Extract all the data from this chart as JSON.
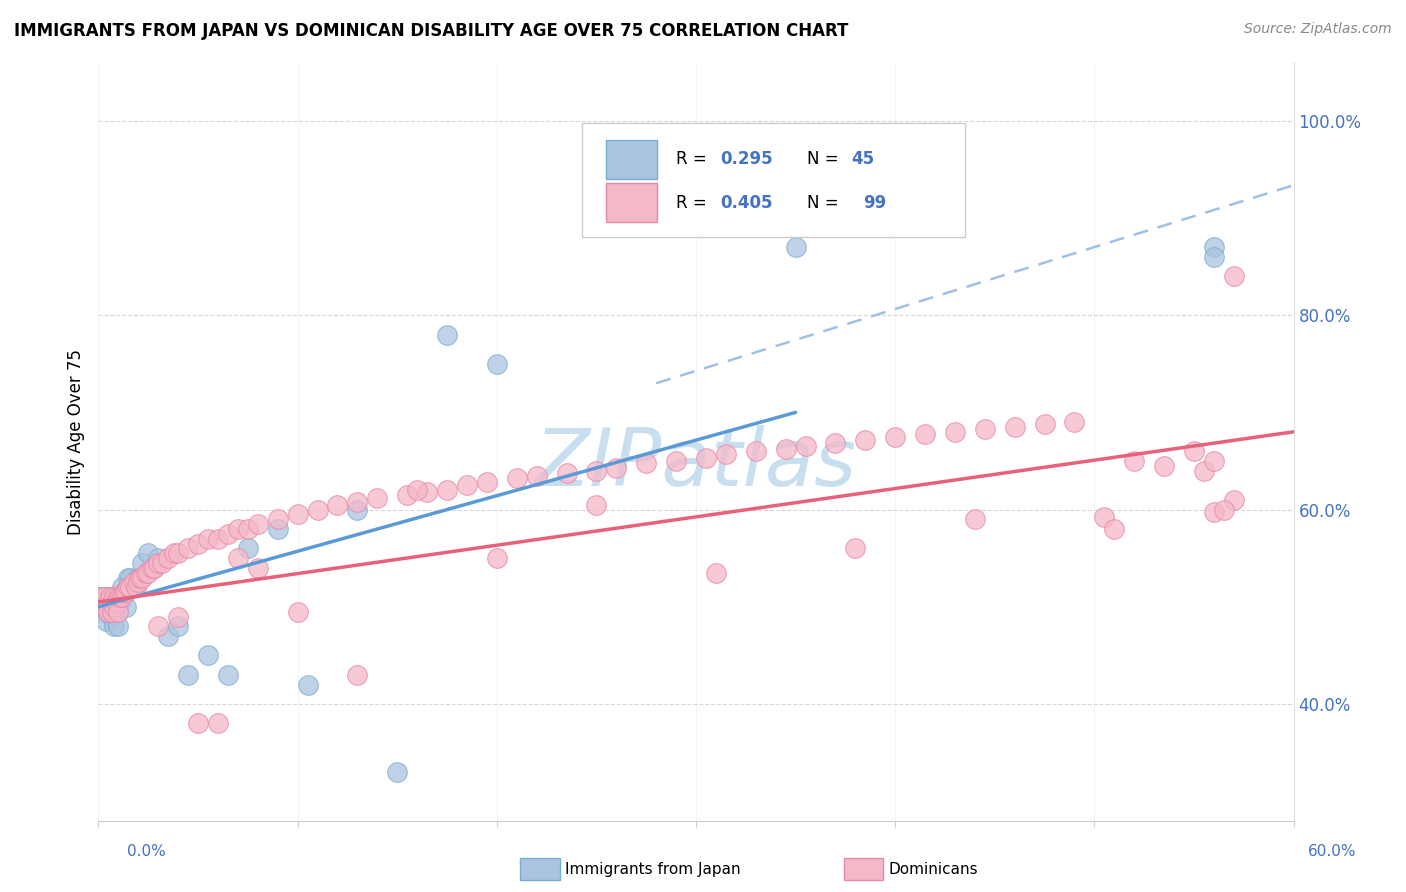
{
  "title": "IMMIGRANTS FROM JAPAN VS DOMINICAN DISABILITY AGE OVER 75 CORRELATION CHART",
  "source_text": "Source: ZipAtlas.com",
  "ylabel": "Disability Age Over 75",
  "xlim": [
    0.0,
    0.6
  ],
  "ylim": [
    0.28,
    1.06
  ],
  "yticks": [
    0.4,
    0.6,
    0.8,
    1.0
  ],
  "ytick_labels": [
    "40.0%",
    "60.0%",
    "80.0%",
    "100.0%"
  ],
  "legend_label1": "Immigrants from Japan",
  "legend_label2": "Dominicans",
  "blue_scatter_color": "#aac4e0",
  "blue_scatter_edge": "#7aaed0",
  "pink_scatter_color": "#f4b8c8",
  "pink_scatter_edge": "#e888a8",
  "blue_line_color": "#5b9bd5",
  "pink_line_color": "#e8607a",
  "dashed_line_color": "#a0c0e8",
  "grid_color": "#d8d8d8",
  "tick_label_color": "#4472c4",
  "watermark_color": "#c8dff0",
  "legend_box_color": "#e8e8f0"
}
